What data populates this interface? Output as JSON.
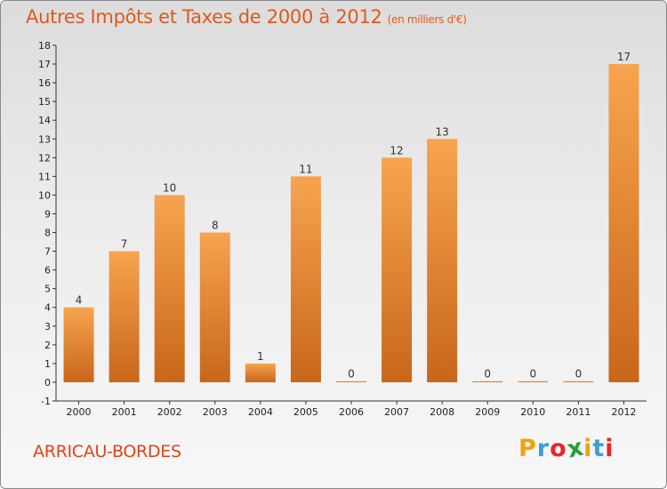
{
  "title": "Autres Impôts et Taxes de 2000 à 2012",
  "subtitle": "(en milliers d'€)",
  "commune": "ARRICAU-BORDES",
  "brand": {
    "letters": [
      "P",
      "r",
      "o",
      "x",
      "i",
      "t",
      "i"
    ],
    "colors": [
      "#f0a30a",
      "#3aa0d8",
      "#e8262a",
      "#2a9c3b",
      "#f0a30a",
      "#3aa0d8",
      "#e8262a"
    ]
  },
  "colors": {
    "bar_top": "#f7a44f",
    "bar_bottom": "#c8661a",
    "title": "#e05a1c",
    "commune": "#e0431c"
  },
  "chart_data": {
    "type": "bar",
    "categories": [
      "2000",
      "2001",
      "2002",
      "2003",
      "2004",
      "2005",
      "2006",
      "2007",
      "2008",
      "2009",
      "2010",
      "2011",
      "2012"
    ],
    "values": [
      4,
      7,
      10,
      8,
      1,
      11,
      0,
      12,
      13,
      0,
      0,
      0,
      17
    ],
    "value_labels": [
      "4",
      "7",
      "10",
      "8",
      "1",
      "11",
      "0",
      "12",
      "13",
      "0",
      "0",
      "0",
      "17"
    ],
    "ylim": [
      -1,
      18
    ],
    "yticks": [
      "-1",
      "0",
      "1",
      "2",
      "3",
      "4",
      "5",
      "6",
      "7",
      "8",
      "9",
      "10",
      "11",
      "12",
      "13",
      "14",
      "15",
      "16",
      "17",
      "18"
    ],
    "grid": false,
    "legend": "none"
  }
}
